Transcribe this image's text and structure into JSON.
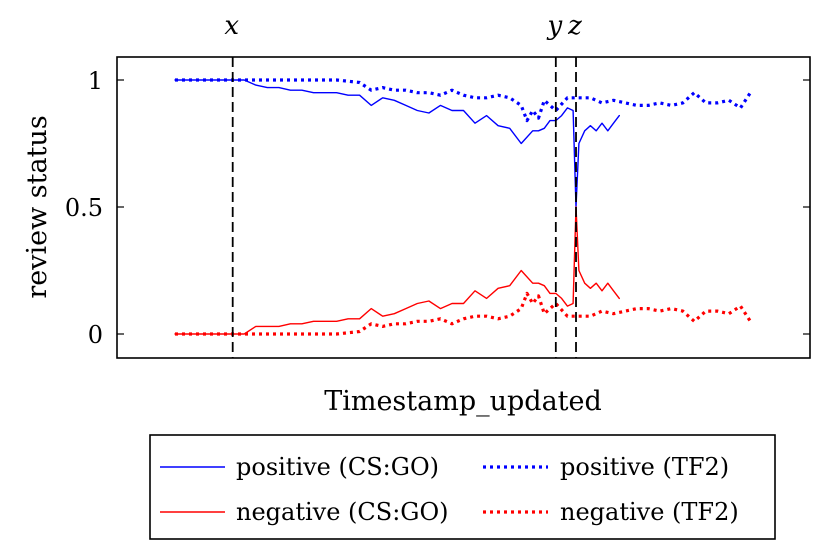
{
  "chart_data": {
    "type": "line",
    "xlabel": "Timestamp_updated",
    "ylabel": "review status",
    "xlim": [
      0,
      100
    ],
    "ylim": [
      -0.1,
      1.1
    ],
    "yticks": [
      0,
      0.5,
      1
    ],
    "ytick_labels": [
      "0",
      "0.5",
      "1"
    ],
    "grid": false,
    "legend_position": "bottom-center",
    "markers": [
      {
        "label": "x",
        "x": 10
      },
      {
        "label": "y",
        "x": 66
      },
      {
        "label": "z",
        "x": 69.5
      }
    ],
    "series": [
      {
        "name": "positive (CS:GO)",
        "color": "#0000ff",
        "style": "solid",
        "x": [
          0,
          2,
          4,
          6,
          8,
          10,
          12,
          14,
          16,
          18,
          20,
          22,
          24,
          26,
          28,
          30,
          32,
          34,
          36,
          38,
          40,
          42,
          44,
          46,
          48,
          50,
          52,
          54,
          56,
          58,
          60,
          62,
          63,
          64,
          65,
          66,
          67,
          68,
          69,
          69.5,
          70,
          71,
          72,
          73,
          74,
          75,
          76,
          77
        ],
        "y": [
          1,
          1,
          1,
          1,
          1,
          1,
          1,
          0.98,
          0.97,
          0.97,
          0.96,
          0.96,
          0.95,
          0.95,
          0.95,
          0.94,
          0.94,
          0.9,
          0.93,
          0.92,
          0.9,
          0.88,
          0.87,
          0.9,
          0.88,
          0.88,
          0.83,
          0.86,
          0.82,
          0.81,
          0.75,
          0.8,
          0.8,
          0.81,
          0.84,
          0.84,
          0.86,
          0.89,
          0.88,
          0.5,
          0.75,
          0.8,
          0.82,
          0.8,
          0.83,
          0.8,
          0.83,
          0.86
        ]
      },
      {
        "name": "positive (TF2)",
        "color": "#0000ff",
        "style": "dotted",
        "x": [
          0,
          4,
          8,
          12,
          16,
          20,
          24,
          28,
          32,
          34,
          36,
          38,
          40,
          42,
          44,
          46,
          48,
          50,
          52,
          54,
          56,
          58,
          60,
          61,
          62,
          63,
          64,
          66,
          68,
          70,
          72,
          74,
          76,
          78,
          80,
          82,
          84,
          86,
          88,
          90,
          92,
          94,
          96,
          98,
          100
        ],
        "y": [
          1,
          1,
          1,
          1,
          1,
          1,
          1,
          1,
          0.99,
          0.96,
          0.97,
          0.96,
          0.96,
          0.95,
          0.95,
          0.94,
          0.96,
          0.94,
          0.93,
          0.93,
          0.94,
          0.93,
          0.9,
          0.84,
          0.88,
          0.85,
          0.92,
          0.88,
          0.93,
          0.93,
          0.93,
          0.91,
          0.92,
          0.91,
          0.9,
          0.9,
          0.91,
          0.9,
          0.91,
          0.95,
          0.91,
          0.91,
          0.92,
          0.89,
          0.96
        ]
      },
      {
        "name": "negative (CS:GO)",
        "color": "#ff0000",
        "style": "solid",
        "x": [
          0,
          2,
          4,
          6,
          8,
          10,
          12,
          14,
          16,
          18,
          20,
          22,
          24,
          26,
          28,
          30,
          32,
          34,
          36,
          38,
          40,
          42,
          44,
          46,
          48,
          50,
          52,
          54,
          56,
          58,
          60,
          62,
          63,
          64,
          65,
          66,
          67,
          68,
          69,
          69.5,
          70,
          71,
          72,
          73,
          74,
          75,
          76,
          77
        ],
        "y": [
          0,
          0,
          0,
          0,
          0,
          0,
          0,
          0.03,
          0.03,
          0.03,
          0.04,
          0.04,
          0.05,
          0.05,
          0.05,
          0.06,
          0.06,
          0.1,
          0.07,
          0.08,
          0.1,
          0.12,
          0.13,
          0.1,
          0.12,
          0.12,
          0.17,
          0.14,
          0.18,
          0.19,
          0.25,
          0.2,
          0.2,
          0.19,
          0.16,
          0.16,
          0.14,
          0.11,
          0.12,
          0.5,
          0.25,
          0.2,
          0.18,
          0.2,
          0.17,
          0.2,
          0.17,
          0.14
        ]
      },
      {
        "name": "negative (TF2)",
        "color": "#ff0000",
        "style": "dotted",
        "x": [
          0,
          4,
          8,
          12,
          16,
          20,
          24,
          28,
          32,
          34,
          36,
          38,
          40,
          42,
          44,
          46,
          48,
          50,
          52,
          54,
          56,
          58,
          60,
          61,
          62,
          63,
          64,
          66,
          68,
          70,
          72,
          74,
          76,
          78,
          80,
          82,
          84,
          86,
          88,
          90,
          92,
          94,
          96,
          98,
          100
        ],
        "y": [
          0,
          0,
          0,
          0,
          0,
          0,
          0,
          0,
          0.01,
          0.04,
          0.03,
          0.04,
          0.04,
          0.05,
          0.05,
          0.06,
          0.04,
          0.06,
          0.07,
          0.07,
          0.06,
          0.07,
          0.1,
          0.16,
          0.12,
          0.15,
          0.08,
          0.12,
          0.07,
          0.07,
          0.07,
          0.09,
          0.08,
          0.09,
          0.1,
          0.1,
          0.09,
          0.1,
          0.09,
          0.05,
          0.09,
          0.09,
          0.08,
          0.11,
          0.04
        ]
      }
    ]
  }
}
